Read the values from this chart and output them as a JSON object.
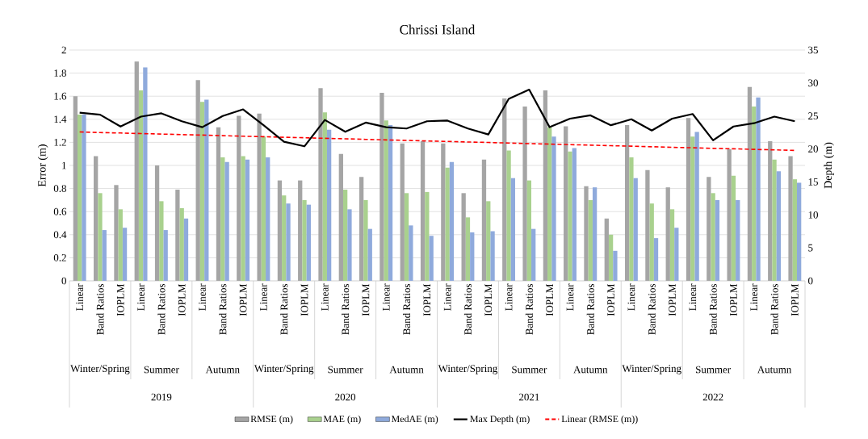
{
  "chart_data": {
    "type": "bar",
    "title": "Chrissi Island",
    "ylabel": "Error (m)",
    "y2label": "Depth (m)",
    "categories": [
      "Linear",
      "Band Ratios",
      "IOPLM",
      "Linear",
      "Band Ratios",
      "IOPLM",
      "Linear",
      "Band Ratios",
      "IOPLM",
      "Linear",
      "Band Ratios",
      "IOPLM",
      "Linear",
      "Band Ratios",
      "IOPLM",
      "Linear",
      "Band Ratios",
      "IOPLM",
      "Linear",
      "Band Ratios",
      "IOPLM",
      "Linear",
      "Band Ratios",
      "IOPLM",
      "Linear",
      "Band Ratios",
      "IOPLM",
      "Linear",
      "Band Ratios",
      "IOPLM",
      "Linear",
      "Band Ratios",
      "IOPLM",
      "Linear",
      "Band Ratios",
      "IOPLM"
    ],
    "series": [
      {
        "name": "RMSE (m)",
        "color": "#a5a5a5",
        "values": [
          1.6,
          1.08,
          0.83,
          1.9,
          1.0,
          0.79,
          1.74,
          1.33,
          1.43,
          1.45,
          0.87,
          0.87,
          1.67,
          1.1,
          0.9,
          1.63,
          1.19,
          1.21,
          1.19,
          0.76,
          1.05,
          1.58,
          1.51,
          1.65,
          1.34,
          0.82,
          0.54,
          1.35,
          0.96,
          0.81,
          1.41,
          0.9,
          1.14,
          1.68,
          1.21,
          1.08
        ]
      },
      {
        "name": "MAE (m)",
        "color": "#a9d18e",
        "values": [
          1.44,
          0.76,
          0.62,
          1.65,
          0.69,
          0.63,
          1.55,
          1.07,
          1.08,
          1.25,
          0.74,
          0.7,
          1.46,
          0.79,
          0.7,
          1.39,
          0.76,
          0.77,
          0.98,
          0.55,
          0.69,
          1.13,
          0.87,
          1.33,
          1.12,
          0.7,
          0.4,
          1.07,
          0.67,
          0.62,
          1.25,
          0.76,
          0.91,
          1.51,
          1.05,
          0.88
        ]
      },
      {
        "name": "MedAE (m)",
        "color": "#8faadc",
        "values": [
          1.44,
          0.44,
          0.46,
          1.85,
          0.44,
          0.54,
          1.57,
          1.03,
          1.05,
          1.07,
          0.67,
          0.66,
          1.31,
          0.62,
          0.45,
          1.35,
          0.48,
          0.39,
          1.03,
          0.42,
          0.43,
          0.89,
          0.45,
          1.25,
          1.15,
          0.81,
          0.26,
          0.89,
          0.37,
          0.46,
          1.29,
          0.7,
          0.7,
          1.59,
          0.95,
          0.85
        ]
      },
      {
        "name": "Max Depth (m)",
        "color": "#000000",
        "type": "line",
        "axis": "y2",
        "line_style": "solid",
        "values": [
          25.5,
          25.2,
          23.4,
          24.9,
          25.4,
          24.2,
          23.3,
          25.0,
          26.0,
          23.6,
          21.1,
          20.4,
          24.4,
          22.6,
          24.0,
          23.3,
          23.1,
          24.2,
          24.3,
          23.1,
          22.2,
          27.6,
          29.0,
          23.3,
          24.6,
          25.1,
          23.6,
          24.5,
          22.8,
          24.6,
          25.3,
          21.3,
          23.4,
          23.9,
          24.9,
          24.2
        ]
      },
      {
        "name": "Linear (RMSE (m))",
        "color": "#ff0000",
        "type": "line",
        "line_style": "dashed",
        "values": [
          1.29,
          1.285,
          1.281,
          1.276,
          1.272,
          1.267,
          1.263,
          1.258,
          1.253,
          1.249,
          1.244,
          1.24,
          1.235,
          1.231,
          1.226,
          1.221,
          1.217,
          1.212,
          1.208,
          1.203,
          1.199,
          1.194,
          1.189,
          1.185,
          1.18,
          1.176,
          1.171,
          1.167,
          1.162,
          1.157,
          1.153,
          1.148,
          1.144,
          1.139,
          1.135,
          1.13
        ]
      }
    ],
    "ylim": [
      0,
      2
    ],
    "yticks": [
      0,
      0.2,
      0.4,
      0.6,
      0.8,
      1,
      1.2,
      1.4,
      1.6,
      1.8,
      2
    ],
    "y2lim": [
      0,
      35
    ],
    "y2ticks": [
      0,
      5,
      10,
      15,
      20,
      25,
      30,
      35
    ],
    "grid": "y",
    "legend": "bottom",
    "annotations": [
      "Winter/Spring",
      "Summer",
      "Autumn",
      "Winter/Spring",
      "Summer",
      "Autumn",
      "Winter/Spring",
      "Summer",
      "Autumn",
      "Winter/Spring",
      "Summer",
      "Autumn",
      "2019",
      "2020",
      "2021",
      "2022"
    ]
  }
}
